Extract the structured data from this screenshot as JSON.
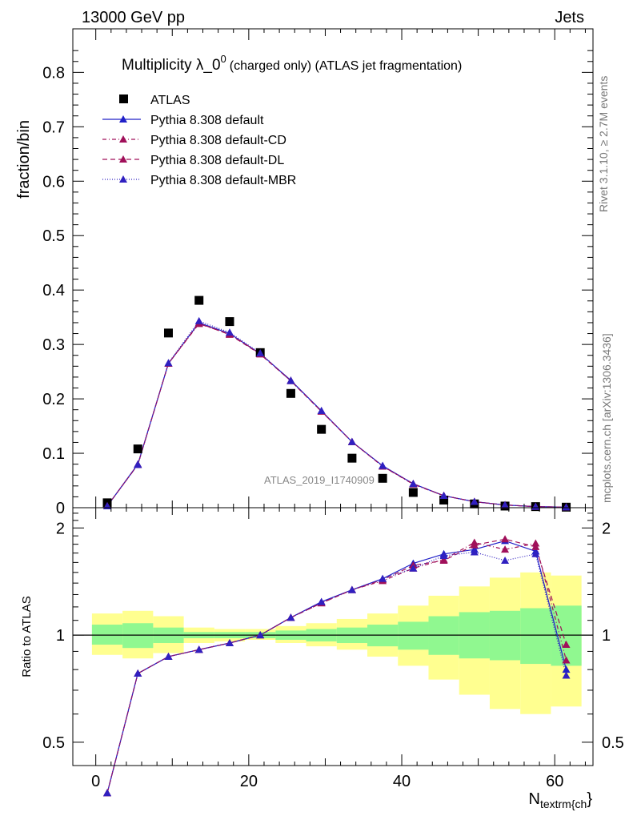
{
  "header": {
    "left": "13000 GeV pp",
    "right": "Jets"
  },
  "side_labels": {
    "rivet": "Rivet 3.1.10, ≥ 2.7M events",
    "mcplots": "mcplots.cern.ch [arXiv:1306.3436]"
  },
  "chart_data": {
    "type": "scatter",
    "title_main": "Multiplicity λ_0",
    "title_sup": "0",
    "title_suffix": "(charged only) (ATLAS jet fragmentation)",
    "ylabel": "fraction/bin",
    "ratio_ylabel": "Ratio to ATLAS",
    "xlabel_main": "N",
    "xlabel_sub": "textrm{ch",
    "xlabel_tail": "}",
    "watermark": "ATLAS_2019_I1740909",
    "xlim": [
      -3,
      65
    ],
    "ylim": [
      0,
      0.88
    ],
    "ratio_ylim": [
      0.43,
      2.28
    ],
    "x_ticks": [
      0,
      20,
      40,
      60
    ],
    "y_ticks": [
      0,
      0.1,
      0.2,
      0.3,
      0.4,
      0.5,
      0.6,
      0.7,
      0.8
    ],
    "y_tick_labels": [
      "0",
      "0.1",
      "0.2",
      "0.3",
      "0.4",
      "0.5",
      "0.6",
      "0.7",
      "0.8"
    ],
    "ratio_ticks": [
      0.5,
      1,
      2
    ],
    "ratio_tick_labels": [
      "0.5",
      "1",
      "2"
    ],
    "x": [
      1.5,
      5.5,
      9.5,
      13.5,
      17.5,
      21.5,
      25.5,
      29.5,
      33.5,
      37.5,
      41.5,
      45.5,
      49.5,
      53.5,
      57.5,
      61.5
    ],
    "bin_edges": [
      -0.5,
      3.5,
      7.5,
      11.5,
      15.5,
      19.5,
      23.5,
      27.5,
      31.5,
      35.5,
      39.5,
      43.5,
      47.5,
      51.5,
      55.5,
      59.5,
      63.5
    ],
    "data_band_green_ratio": [
      [
        0.94,
        1.07
      ],
      [
        0.92,
        1.08
      ],
      [
        0.95,
        1.05
      ],
      [
        0.98,
        1.02
      ],
      [
        0.98,
        1.02
      ],
      [
        0.98,
        1.02
      ],
      [
        0.97,
        1.03
      ],
      [
        0.96,
        1.04
      ],
      [
        0.95,
        1.05
      ],
      [
        0.93,
        1.07
      ],
      [
        0.91,
        1.09
      ],
      [
        0.88,
        1.13
      ],
      [
        0.86,
        1.16
      ],
      [
        0.85,
        1.17
      ],
      [
        0.83,
        1.19
      ],
      [
        0.82,
        1.21
      ]
    ],
    "data_band_yellow_ratio": [
      [
        0.88,
        1.15
      ],
      [
        0.86,
        1.17
      ],
      [
        0.89,
        1.13
      ],
      [
        0.95,
        1.05
      ],
      [
        0.96,
        1.04
      ],
      [
        0.97,
        1.04
      ],
      [
        0.95,
        1.06
      ],
      [
        0.93,
        1.08
      ],
      [
        0.91,
        1.11
      ],
      [
        0.87,
        1.15
      ],
      [
        0.82,
        1.21
      ],
      [
        0.75,
        1.29
      ],
      [
        0.68,
        1.37
      ],
      [
        0.62,
        1.45
      ],
      [
        0.6,
        1.5
      ],
      [
        0.63,
        1.47
      ]
    ],
    "series": [
      {
        "name": "ATLAS",
        "color": "#000000",
        "marker": "square",
        "values": [
          0.009,
          0.108,
          0.321,
          0.381,
          0.342,
          0.285,
          0.21,
          0.144,
          0.091,
          0.054,
          0.028,
          0.014,
          0.007,
          0.003,
          0.002,
          0.001
        ]
      },
      {
        "name": "Pythia 8.308 default",
        "color": "#2020c8",
        "marker": "triangle",
        "dash": "",
        "values": [
          0.003,
          0.08,
          0.265,
          0.34,
          0.32,
          0.283,
          0.234,
          0.178,
          0.121,
          0.077,
          0.044,
          0.022,
          0.011,
          0.005,
          0.002,
          0.001
        ],
        "ratio": [
          0.36,
          0.78,
          0.87,
          0.91,
          0.95,
          1.0,
          1.12,
          1.24,
          1.34,
          1.44,
          1.59,
          1.69,
          1.74,
          1.84,
          1.72,
          0.8
        ]
      },
      {
        "name": "Pythia 8.308 default-CD",
        "color": "#a0105a",
        "marker": "triangle",
        "dash": "5,3,1,3",
        "values": [
          0.003,
          0.079,
          0.265,
          0.338,
          0.319,
          0.283,
          0.233,
          0.177,
          0.121,
          0.076,
          0.043,
          0.022,
          0.011,
          0.005,
          0.002,
          0.001
        ],
        "ratio": [
          0.36,
          0.78,
          0.87,
          0.91,
          0.95,
          1.0,
          1.12,
          1.23,
          1.34,
          1.42,
          1.54,
          1.63,
          1.82,
          1.74,
          1.81,
          0.85
        ]
      },
      {
        "name": "Pythia 8.308 default-DL",
        "color": "#a0105a",
        "marker": "triangle",
        "dash": "6,4",
        "values": [
          0.003,
          0.079,
          0.265,
          0.339,
          0.318,
          0.282,
          0.233,
          0.177,
          0.121,
          0.076,
          0.044,
          0.022,
          0.011,
          0.005,
          0.002,
          0.001
        ],
        "ratio": [
          0.36,
          0.78,
          0.87,
          0.91,
          0.95,
          1.0,
          1.12,
          1.23,
          1.34,
          1.43,
          1.57,
          1.62,
          1.79,
          1.86,
          1.77,
          0.94
        ]
      },
      {
        "name": "Pythia 8.308 default-MBR",
        "color": "#3020c0",
        "marker": "triangle",
        "dash": "1,2",
        "values": [
          0.003,
          0.079,
          0.266,
          0.343,
          0.322,
          0.284,
          0.233,
          0.178,
          0.121,
          0.077,
          0.044,
          0.022,
          0.011,
          0.005,
          0.002,
          0.001
        ],
        "ratio": [
          0.36,
          0.78,
          0.87,
          0.91,
          0.95,
          1.0,
          1.12,
          1.24,
          1.34,
          1.44,
          1.54,
          1.67,
          1.71,
          1.62,
          1.69,
          0.77
        ]
      }
    ]
  }
}
